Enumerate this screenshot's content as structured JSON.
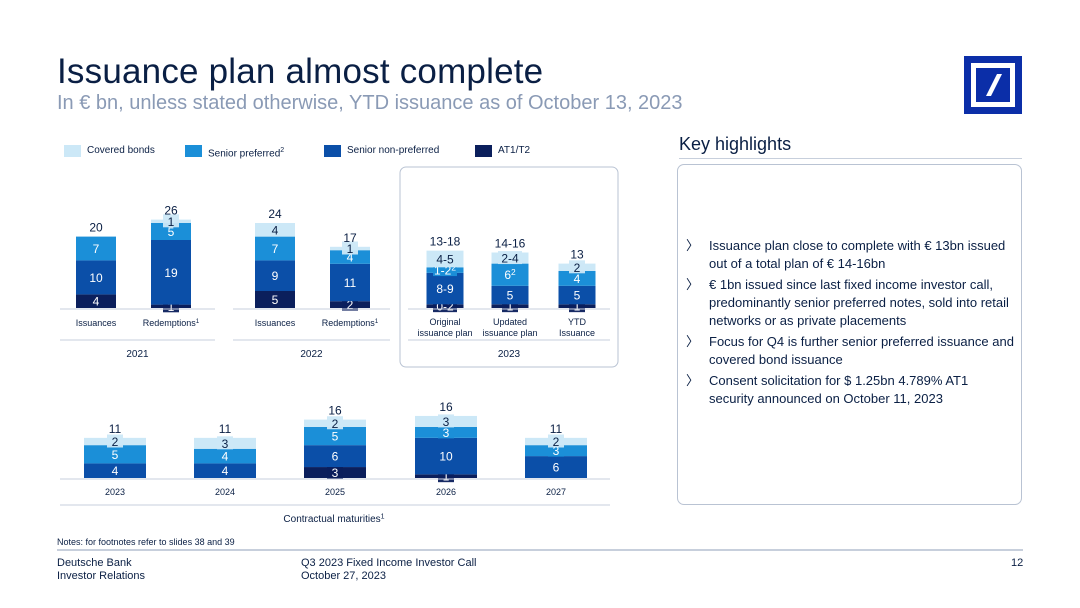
{
  "header": {
    "title": "Issuance plan almost complete",
    "subtitle": "In € bn, unless stated otherwise, YTD issuance as of October 13, 2023"
  },
  "colors": {
    "covered": "#cce8f7",
    "senior_preferred": "#1b8fd8",
    "senior_non_preferred": "#0b4fa8",
    "at1_t2": "#0b1f5c",
    "text_dark": "#0a1f44",
    "text_grey": "#8a9ab5"
  },
  "legend": [
    {
      "label": "Covered bonds",
      "sup": "",
      "color": "#cce8f7"
    },
    {
      "label": "Senior preferred",
      "sup": "2",
      "color": "#1b8fd8"
    },
    {
      "label": "Senior non-preferred",
      "sup": "",
      "color": "#0b4fa8"
    },
    {
      "label": "AT1/T2",
      "sup": "",
      "color": "#0b1f5c"
    }
  ],
  "chart_data": [
    {
      "type": "bar",
      "stacked": true,
      "group": "2021",
      "categories": [
        {
          "label": "Issuances",
          "sup": ""
        },
        {
          "label": "Redemptions",
          "sup": "1"
        }
      ],
      "series": [
        {
          "name": "AT1/T2",
          "values": [
            4,
            1
          ]
        },
        {
          "name": "Senior non-preferred",
          "values": [
            10,
            19
          ]
        },
        {
          "name": "Senior preferred",
          "values": [
            7,
            5
          ]
        },
        {
          "name": "Covered bonds",
          "values": [
            0,
            1
          ]
        }
      ],
      "totals": [
        "20",
        "26"
      ],
      "segment_labels": [
        [
          "4",
          "10",
          "7",
          ""
        ],
        [
          "1",
          "19",
          "5",
          "1"
        ]
      ]
    },
    {
      "type": "bar",
      "stacked": true,
      "group": "2022",
      "categories": [
        {
          "label": "Issuances",
          "sup": ""
        },
        {
          "label": "Redemptions",
          "sup": "1"
        }
      ],
      "series": [
        {
          "name": "AT1/T2",
          "values": [
            5,
            2
          ]
        },
        {
          "name": "Senior non-preferred",
          "values": [
            9,
            11
          ]
        },
        {
          "name": "Senior preferred",
          "values": [
            7,
            4
          ]
        },
        {
          "name": "Covered bonds",
          "values": [
            4,
            1
          ]
        }
      ],
      "totals": [
        "24",
        "17"
      ],
      "segment_labels": [
        [
          "5",
          "9",
          "7",
          "4"
        ],
        [
          "2",
          "11",
          "4",
          "1"
        ]
      ]
    },
    {
      "type": "bar",
      "stacked": true,
      "group": "2023",
      "categories": [
        {
          "label": "Original",
          "label2": "issuance plan"
        },
        {
          "label": "Updated",
          "label2": "issuance plan"
        },
        {
          "label": "YTD",
          "label2": "Issuance"
        }
      ],
      "series": [
        {
          "name": "AT1/T2",
          "values": [
            1,
            1,
            1
          ]
        },
        {
          "name": "Senior non-preferred",
          "values": [
            8.5,
            5,
            5
          ]
        },
        {
          "name": "Senior preferred",
          "values": [
            1.5,
            6,
            4
          ]
        },
        {
          "name": "Covered bonds",
          "values": [
            4.5,
            3,
            2
          ]
        }
      ],
      "totals": [
        "13-18",
        "14-16",
        "13"
      ],
      "segment_labels": [
        [
          "0-2",
          "8-9",
          "1-2",
          "4-5"
        ],
        [
          "1",
          "5",
          "6",
          "2-4"
        ],
        [
          "1",
          "5",
          "4",
          "2"
        ]
      ],
      "segment_sups": [
        [
          "",
          "",
          "2",
          ""
        ],
        [
          "",
          "",
          "2",
          ""
        ],
        [
          "",
          "",
          "",
          ""
        ]
      ]
    },
    {
      "type": "bar",
      "stacked": true,
      "title": "Contractual maturities",
      "title_sup": "1",
      "categories": [
        {
          "label": "2023"
        },
        {
          "label": "2024"
        },
        {
          "label": "2025"
        },
        {
          "label": "2026"
        },
        {
          "label": "2027"
        }
      ],
      "series": [
        {
          "name": "AT1/T2",
          "values": [
            0,
            0,
            3,
            1,
            0
          ]
        },
        {
          "name": "Senior non-preferred",
          "values": [
            4,
            4,
            6,
            10,
            6
          ]
        },
        {
          "name": "Senior preferred",
          "values": [
            5,
            4,
            5,
            3,
            3
          ]
        },
        {
          "name": "Covered bonds",
          "values": [
            2,
            3,
            2,
            3,
            2
          ]
        }
      ],
      "totals": [
        "11",
        "11",
        "16",
        "16",
        "11"
      ],
      "segment_labels": [
        [
          "",
          "4",
          "5",
          "2"
        ],
        [
          "",
          "4",
          "4",
          "3"
        ],
        [
          "3",
          "6",
          "5",
          "2"
        ],
        [
          "1",
          "10",
          "3",
          "3"
        ],
        [
          "",
          "6",
          "3",
          "2"
        ]
      ]
    }
  ],
  "key_highlights": {
    "title": "Key highlights",
    "bullet_glyph": "〉",
    "items": [
      "Issuance plan close to complete with € 13bn issued out of a total plan of € 14-16bn",
      "€ 1bn issued since last fixed income investor call, predominantly senior preferred notes, sold into retail networks or as private placements",
      "Focus for Q4 is further senior preferred issuance and covered bond issuance",
      "Consent solicitation for $ 1.25bn 4.789% AT1 security announced on October 11, 2023"
    ]
  },
  "notes": "Notes: for footnotes refer to slides 38 and 39",
  "footer": {
    "company": "Deutsche Bank",
    "department": "Investor Relations",
    "event": "Q3 2023 Fixed Income Investor Call",
    "date": "October 27, 2023",
    "page": "12"
  },
  "logo_icon": "deutsche-bank-logo-icon"
}
